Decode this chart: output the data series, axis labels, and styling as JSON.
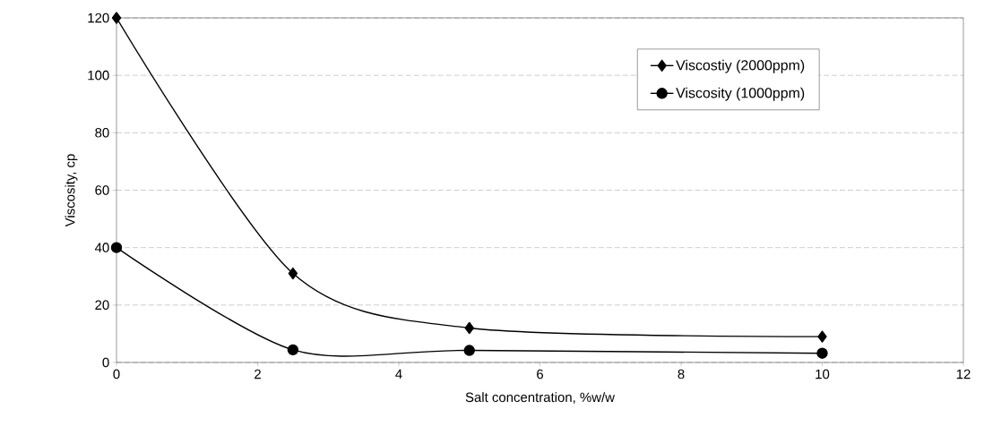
{
  "chart_data": {
    "type": "line",
    "xlabel": "Salt concentration, %w/w",
    "ylabel": "Viscosity, cp",
    "x": [
      0,
      2.5,
      5,
      10
    ],
    "series": [
      {
        "name": "Viscostiy (2000ppm)",
        "color": "#000000",
        "marker": "diamond",
        "values": [
          120,
          31,
          12,
          9
        ]
      },
      {
        "name": "Viscosity (1000ppm)",
        "color": "#000000",
        "marker": "circle",
        "values": [
          40,
          4.4,
          4.2,
          3.2
        ]
      }
    ],
    "xlim": [
      0,
      12
    ],
    "ylim": [
      0,
      120
    ],
    "xticks": [
      0,
      2,
      4,
      6,
      8,
      10,
      12
    ],
    "yticks": [
      0,
      20,
      40,
      60,
      80,
      100,
      120
    ],
    "grid": "y",
    "legend": "top right",
    "line_style": "solid"
  }
}
